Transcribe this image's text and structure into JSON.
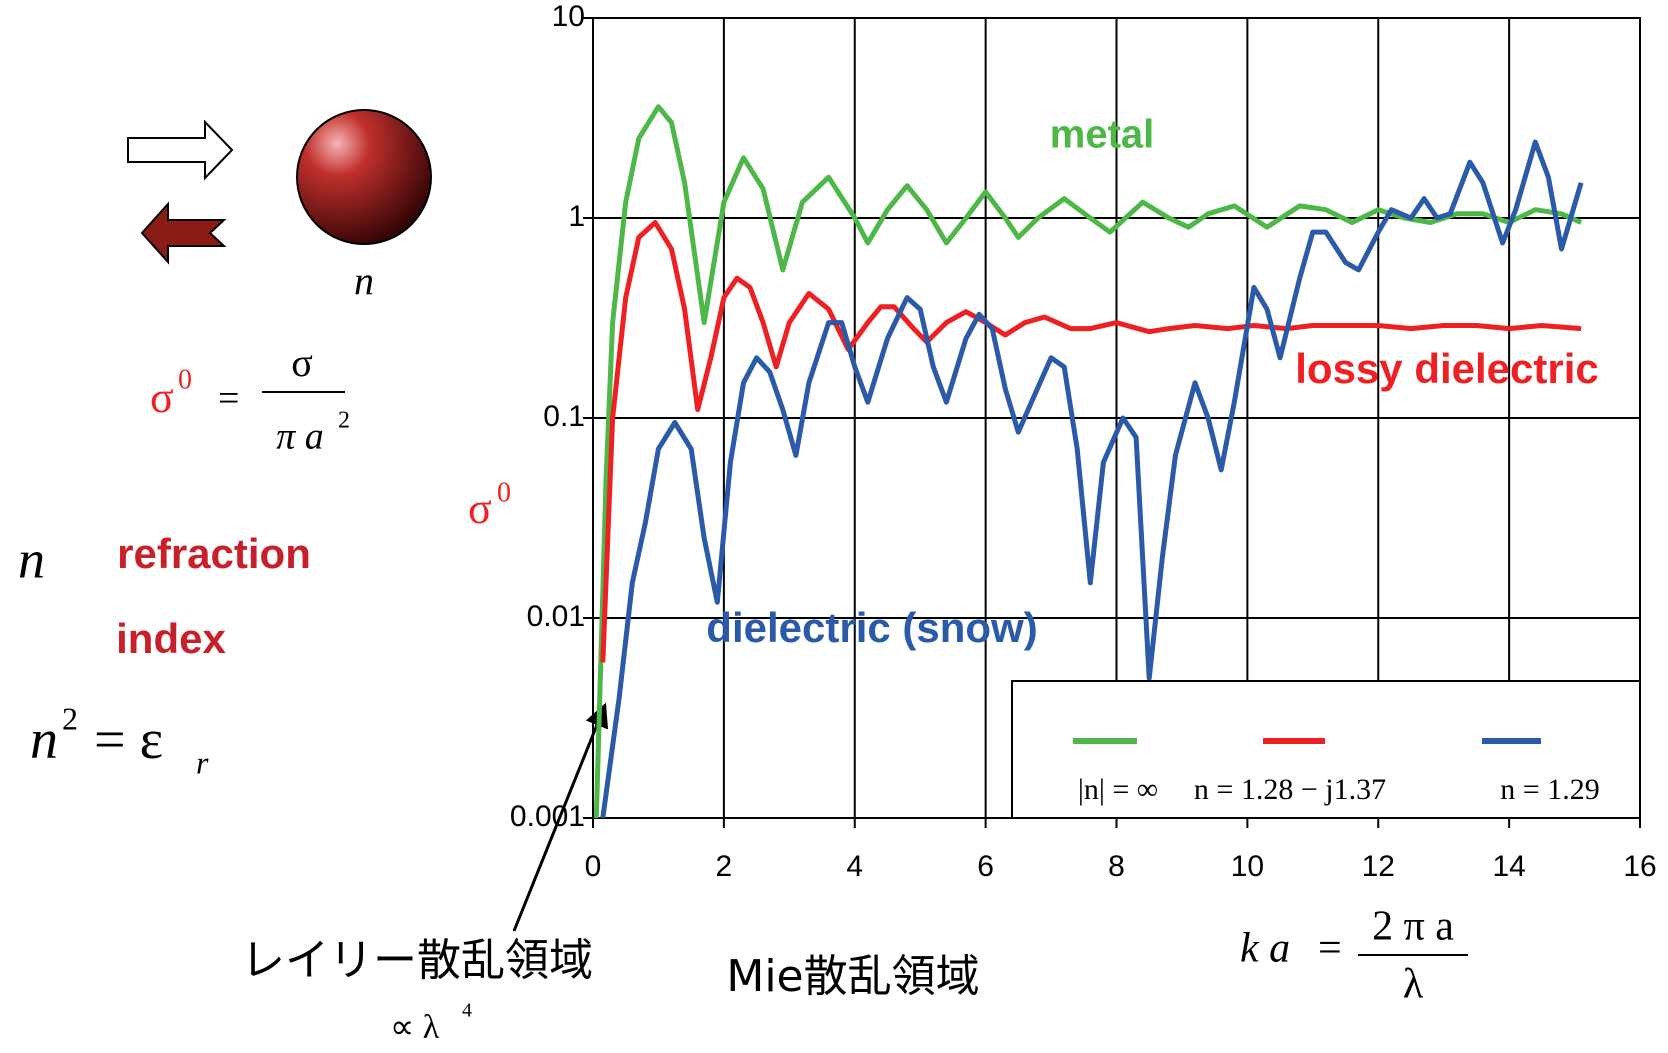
{
  "chart_data": {
    "type": "line",
    "y_label": "σ",
    "y_label_sup": "0",
    "xlim": [
      0,
      16
    ],
    "xticks": [
      0,
      2,
      4,
      6,
      8,
      10,
      12,
      14,
      16
    ],
    "ylim": [
      0.001,
      10
    ],
    "yticks": [
      0.001,
      0.01,
      0.1,
      1,
      10
    ],
    "log_y": true,
    "grid": true,
    "series": [
      {
        "name": "|n| = ∞",
        "annotation": "metal",
        "color": "#4db848",
        "x": [
          0.05,
          0.2,
          0.3,
          0.5,
          0.7,
          1.0,
          1.2,
          1.4,
          1.7,
          2.0,
          2.3,
          2.6,
          2.9,
          3.2,
          3.6,
          4.0,
          4.2,
          4.5,
          4.8,
          5.1,
          5.4,
          5.7,
          6.0,
          6.3,
          6.5,
          6.8,
          7.2,
          7.6,
          7.9,
          8.4,
          8.8,
          9.1,
          9.4,
          9.8,
          10.3,
          10.8,
          11.2,
          11.6,
          12.0,
          12.4,
          12.8,
          13.2,
          13.6,
          14.0,
          14.4,
          14.8,
          15.1
        ],
        "values": [
          0.001,
          0.05,
          0.3,
          1.2,
          2.5,
          3.6,
          3.0,
          1.5,
          0.3,
          1.2,
          2.0,
          1.4,
          0.55,
          1.2,
          1.6,
          1.0,
          0.75,
          1.1,
          1.45,
          1.1,
          0.75,
          1.0,
          1.35,
          1.0,
          0.8,
          1.0,
          1.25,
          1.0,
          0.85,
          1.2,
          1.0,
          0.9,
          1.05,
          1.15,
          0.9,
          1.15,
          1.1,
          0.95,
          1.1,
          1.0,
          0.95,
          1.05,
          1.05,
          0.95,
          1.1,
          1.05,
          0.95
        ]
      },
      {
        "name": "n = 1.28 − j1.37",
        "annotation": "lossy dielectric",
        "color": "#ed2024",
        "x": [
          0.15,
          0.3,
          0.5,
          0.7,
          0.95,
          1.2,
          1.4,
          1.6,
          1.8,
          2.0,
          2.2,
          2.4,
          2.6,
          2.8,
          3.0,
          3.3,
          3.6,
          3.9,
          4.2,
          4.4,
          4.6,
          4.9,
          5.1,
          5.4,
          5.7,
          6.0,
          6.3,
          6.6,
          6.9,
          7.3,
          7.6,
          8.0,
          8.5,
          8.8,
          9.2,
          9.7,
          10.1,
          10.6,
          11.0,
          11.5,
          12.0,
          12.5,
          13.0,
          13.5,
          14.0,
          14.5,
          15.1
        ],
        "values": [
          0.006,
          0.1,
          0.4,
          0.8,
          0.95,
          0.7,
          0.35,
          0.11,
          0.2,
          0.4,
          0.5,
          0.45,
          0.3,
          0.18,
          0.3,
          0.42,
          0.35,
          0.22,
          0.3,
          0.36,
          0.36,
          0.28,
          0.24,
          0.3,
          0.34,
          0.3,
          0.26,
          0.3,
          0.32,
          0.28,
          0.28,
          0.3,
          0.27,
          0.28,
          0.29,
          0.28,
          0.29,
          0.28,
          0.29,
          0.29,
          0.29,
          0.28,
          0.29,
          0.29,
          0.28,
          0.29,
          0.28
        ]
      },
      {
        "name": "n = 1.29",
        "annotation": "dielectric (snow)",
        "color": "#2b5aa8",
        "x": [
          0.15,
          0.4,
          0.6,
          0.8,
          1.0,
          1.25,
          1.5,
          1.7,
          1.9,
          2.1,
          2.3,
          2.5,
          2.7,
          2.9,
          3.1,
          3.3,
          3.6,
          3.8,
          4.0,
          4.2,
          4.5,
          4.8,
          5.0,
          5.2,
          5.4,
          5.7,
          5.9,
          6.1,
          6.3,
          6.5,
          6.7,
          7.0,
          7.2,
          7.4,
          7.6,
          7.8,
          8.1,
          8.3,
          8.5,
          8.7,
          8.9,
          9.2,
          9.4,
          9.6,
          9.8,
          10.1,
          10.3,
          10.5,
          10.8,
          11.0,
          11.2,
          11.5,
          11.7,
          12.0,
          12.2,
          12.5,
          12.7,
          12.9,
          13.1,
          13.4,
          13.6,
          13.9,
          14.1,
          14.4,
          14.6,
          14.8,
          15.1
        ],
        "values": [
          0.001,
          0.004,
          0.015,
          0.03,
          0.07,
          0.095,
          0.07,
          0.025,
          0.012,
          0.06,
          0.15,
          0.2,
          0.17,
          0.11,
          0.065,
          0.15,
          0.3,
          0.3,
          0.18,
          0.12,
          0.25,
          0.4,
          0.35,
          0.18,
          0.12,
          0.25,
          0.33,
          0.28,
          0.14,
          0.085,
          0.12,
          0.2,
          0.18,
          0.07,
          0.015,
          0.06,
          0.1,
          0.08,
          0.005,
          0.02,
          0.065,
          0.15,
          0.1,
          0.055,
          0.12,
          0.45,
          0.35,
          0.2,
          0.5,
          0.85,
          0.85,
          0.6,
          0.55,
          0.85,
          1.1,
          1.0,
          1.25,
          1.0,
          1.05,
          1.9,
          1.5,
          0.75,
          1.1,
          2.4,
          1.6,
          0.7,
          1.5
        ]
      }
    ],
    "x_label": {
      "lhs": "k a",
      "eq": "=",
      "num": "2 π a",
      "den": "λ"
    },
    "regions": {
      "rayleigh": "レイリー散乱領域",
      "rayleigh_law": "∝  λ",
      "rayleigh_law_sup": "4",
      "mie": "Mie散乱領域"
    }
  },
  "figure": {
    "sphere_label": "n",
    "sigma_formula": {
      "lhs": "σ",
      "lhs_sup": "0",
      "eq": "=",
      "num": "σ",
      "den": "π a",
      "den_sup": "2"
    },
    "n_symbol": "n",
    "n_desc_1": "refraction",
    "n_desc_2": "index",
    "n_relation": {
      "lhs": "n",
      "lhs_sup": "2",
      "eq": "= ε",
      "sub": "r"
    }
  }
}
